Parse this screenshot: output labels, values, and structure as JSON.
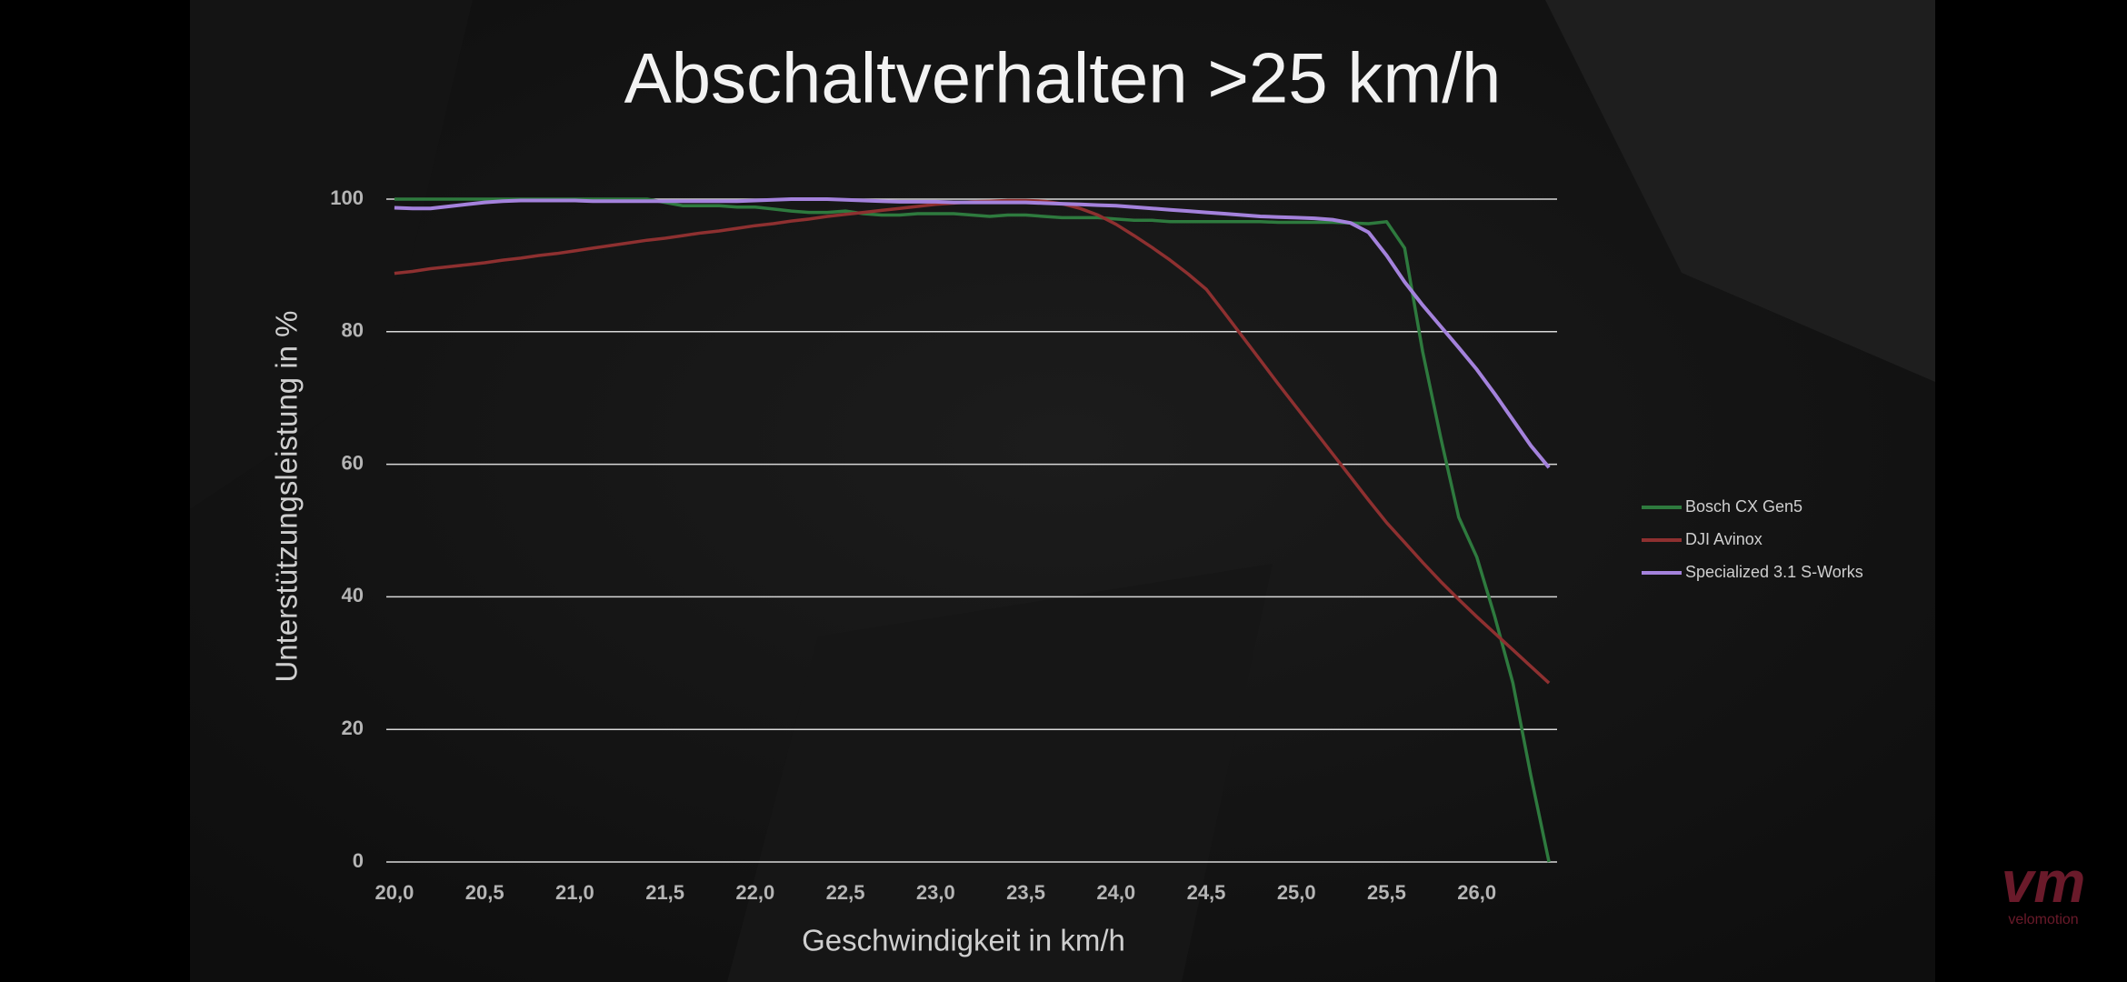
{
  "chart_data": {
    "type": "line",
    "title": "Abschaltverhalten >25 km/h",
    "x_label": "Geschwindigkeit in km/h",
    "y_label": "Unterstützungsleistung in %",
    "x": [
      20.0,
      20.1,
      20.2,
      20.3,
      20.4,
      20.5,
      20.6,
      20.7,
      20.8,
      20.9,
      21.0,
      21.1,
      21.2,
      21.3,
      21.4,
      21.5,
      21.6,
      21.7,
      21.8,
      21.9,
      22.0,
      22.1,
      22.2,
      22.3,
      22.4,
      22.5,
      22.6,
      22.7,
      22.8,
      22.9,
      23.0,
      23.1,
      23.2,
      23.3,
      23.4,
      23.5,
      23.6,
      23.7,
      23.8,
      23.9,
      24.0,
      24.1,
      24.2,
      24.3,
      24.4,
      24.5,
      24.6,
      24.7,
      24.8,
      24.9,
      25.0,
      25.1,
      25.2,
      25.3,
      25.4,
      25.5,
      25.6,
      25.7,
      25.8,
      25.9,
      26.0,
      26.1,
      26.2,
      26.3,
      26.4
    ],
    "series": [
      {
        "name": "Bosch CX Gen5",
        "color": "#2e7a3e",
        "values": [
          100,
          100,
          100,
          100,
          100,
          100,
          100,
          100,
          100,
          100,
          100,
          100,
          100,
          100,
          100,
          99.5,
          99,
          99,
          99,
          98.8,
          98.8,
          98.5,
          98.2,
          98,
          98,
          98.2,
          97.8,
          97.6,
          97.6,
          97.8,
          97.8,
          97.8,
          97.6,
          97.4,
          97.6,
          97.6,
          97.4,
          97.2,
          97.2,
          97.2,
          97,
          96.8,
          96.8,
          96.6,
          96.6,
          96.6,
          96.6,
          96.6,
          96.6,
          96.5,
          96.5,
          96.5,
          96.5,
          96.4,
          96.3,
          96.6,
          92.6,
          77,
          64,
          52,
          46,
          37,
          27,
          13,
          0
        ]
      },
      {
        "name": "DJI Avinox",
        "color": "#8e3030",
        "values": [
          88.8,
          89.1,
          89.5,
          89.8,
          90.1,
          90.4,
          90.8,
          91.1,
          91.5,
          91.8,
          92.2,
          92.6,
          93,
          93.4,
          93.8,
          94.1,
          94.5,
          94.9,
          95.2,
          95.6,
          96,
          96.3,
          96.7,
          97,
          97.4,
          97.7,
          98,
          98.3,
          98.6,
          98.9,
          99.2,
          99.4,
          99.6,
          99.7,
          99.8,
          99.8,
          99.7,
          99.3,
          98.6,
          97.6,
          96.2,
          94.5,
          92.7,
          90.8,
          88.7,
          86.4,
          82.9,
          79.3,
          75.7,
          72.1,
          68.6,
          65.1,
          61.6,
          58.1,
          54.6,
          51.2,
          48.2,
          45.2,
          42.3,
          39.6,
          37,
          34.5,
          32,
          29.5,
          27
        ]
      },
      {
        "name": "Specialized 3.1 S-Works",
        "color": "#a482dc",
        "values": [
          98.7,
          98.6,
          98.6,
          98.9,
          99.2,
          99.5,
          99.7,
          99.8,
          99.8,
          99.8,
          99.8,
          99.7,
          99.7,
          99.7,
          99.7,
          99.7,
          99.7,
          99.7,
          99.7,
          99.7,
          99.8,
          99.9,
          100,
          100,
          100,
          99.9,
          99.8,
          99.7,
          99.6,
          99.6,
          99.6,
          99.5,
          99.5,
          99.5,
          99.5,
          99.5,
          99.4,
          99.3,
          99.2,
          99.1,
          99,
          98.8,
          98.6,
          98.4,
          98.2,
          98,
          97.8,
          97.6,
          97.4,
          97.3,
          97.2,
          97.1,
          96.9,
          96.4,
          95,
          91.5,
          87.5,
          84,
          80.8,
          77.6,
          74.3,
          70.6,
          66.7,
          62.8,
          59.5
        ]
      }
    ],
    "xlim": [
      19.955,
      26.445
    ],
    "ylim": [
      0,
      100
    ],
    "xticks": [
      {
        "value": 20.0,
        "label": "20,0"
      },
      {
        "value": 20.5,
        "label": "20,5"
      },
      {
        "value": 21.0,
        "label": "21,0"
      },
      {
        "value": 21.5,
        "label": "21,5"
      },
      {
        "value": 22.0,
        "label": "22,0"
      },
      {
        "value": 22.5,
        "label": "22,5"
      },
      {
        "value": 23.0,
        "label": "23,0"
      },
      {
        "value": 23.5,
        "label": "23,5"
      },
      {
        "value": 24.0,
        "label": "24,0"
      },
      {
        "value": 24.5,
        "label": "24,5"
      },
      {
        "value": 25.0,
        "label": "25,0"
      },
      {
        "value": 25.5,
        "label": "25,5"
      },
      {
        "value": 26.0,
        "label": "26,0"
      }
    ],
    "yticks": [
      0,
      20,
      40,
      60,
      80,
      100
    ],
    "grid": true,
    "legend": "right"
  },
  "logo": {
    "mark": "vm",
    "name": "velomotion"
  }
}
